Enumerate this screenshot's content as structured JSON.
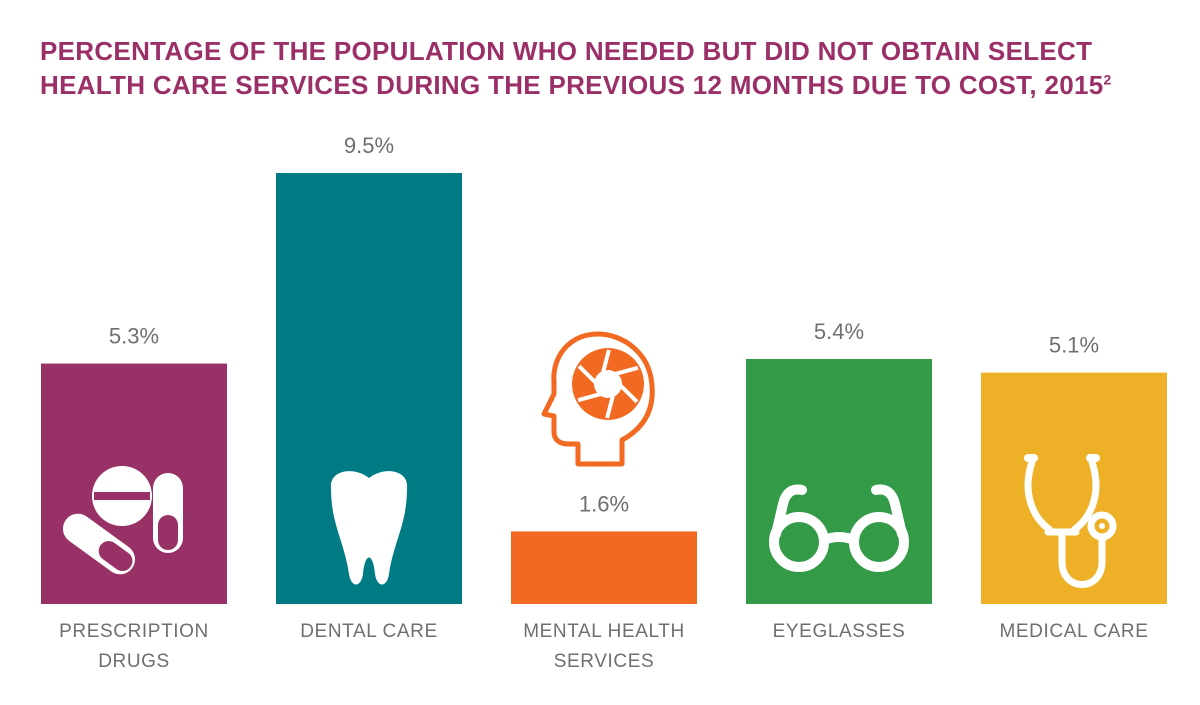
{
  "title": {
    "text": "PERCENTAGE OF THE POPULATION WHO NEEDED BUT DID NOT OBTAIN SELECT HEALTH CARE SERVICES DURING THE PREVIOUS 12 MONTHS DUE TO COST, 2015",
    "footnote": "2"
  },
  "colors": {
    "title": "#9b2f67",
    "label": "#6f6f6f",
    "bars": [
      "#983266",
      "#007b84",
      "#f26a21",
      "#339a48",
      "#edb026"
    ]
  },
  "chart_data": {
    "type": "bar",
    "title": "PERCENTAGE OF THE POPULATION WHO NEEDED BUT DID NOT OBTAIN SELECT HEALTH CARE SERVICES DURING THE PREVIOUS 12 MONTHS DUE TO COST, 2015",
    "categories": [
      [
        "PRESCRIPTION",
        "DRUGS"
      ],
      [
        "DENTAL CARE"
      ],
      [
        "MENTAL HEALTH",
        "SERVICES"
      ],
      [
        "EYEGLASSES"
      ],
      [
        "MEDICAL CARE"
      ]
    ],
    "values": [
      5.3,
      9.5,
      1.6,
      5.4,
      5.1
    ],
    "value_labels": [
      "5.3%",
      "9.5%",
      "1.6%",
      "5.4%",
      "5.1%"
    ],
    "icons": [
      "pills-icon",
      "tooth-icon",
      "mind-head-icon",
      "eyeglasses-icon",
      "stethoscope-icon"
    ],
    "xlabel": "",
    "ylabel": "",
    "ylim": [
      0,
      9.5
    ],
    "grid": false,
    "legend": "none"
  }
}
